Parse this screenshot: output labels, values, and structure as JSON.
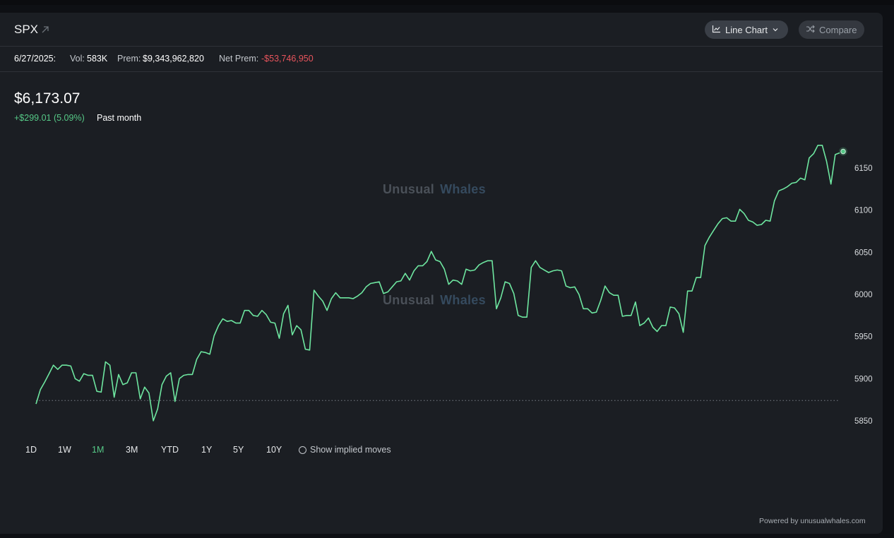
{
  "header": {
    "ticker": "SPX",
    "chart_type_label": "Line Chart",
    "compare_label": "Compare"
  },
  "stats": {
    "date": "6/27/2025:",
    "vol_label": "Vol:",
    "vol_value": "583K",
    "prem_label": "Prem:",
    "prem_value": "$9,343,962,820",
    "net_prem_label": "Net Prem:",
    "net_prem_value": "-$53,746,950"
  },
  "price": {
    "current": "$6,173.07",
    "change": "+$299.01 (5.09%)",
    "period": "Past month"
  },
  "watermark": {
    "word1": "Unusual",
    "word2": "Whales"
  },
  "ranges": [
    "1D",
    "1W",
    "1M",
    "3M",
    "YTD",
    "1Y",
    "5Y",
    "10Y"
  ],
  "active_range": "1M",
  "implied_moves_label": "Show implied moves",
  "footer": "Powered by unusualwhales.com",
  "colors": {
    "line": "#6ee6a0",
    "accent": "#56c987",
    "negative": "#e8545c",
    "background": "#1b1e23"
  },
  "icons": {
    "ticker": "arrow-up-right-icon",
    "chart_type": "line-chart-icon",
    "dropdown": "chevron-down-icon",
    "compare": "shuffle-icon"
  },
  "chart_data": {
    "type": "line",
    "title": "",
    "xlabel": "",
    "ylabel": "",
    "ylim": [
      5835,
      6180
    ],
    "yticks": [
      5850,
      5900,
      5950,
      6000,
      6050,
      6100,
      6150
    ],
    "y_axis_position": "right",
    "grid": false,
    "baseline": 5874.06,
    "series": [
      {
        "values": [
          5870,
          5887,
          5896,
          5906,
          5916,
          5911,
          5916,
          5916,
          5915,
          5900,
          5897,
          5906,
          5904,
          5904,
          5885,
          5884,
          5920,
          5916,
          5878,
          5905,
          5893,
          5895,
          5907,
          5907,
          5876,
          5890,
          5883,
          5850,
          5864,
          5893,
          5903,
          5907,
          5873,
          5900,
          5904,
          5905,
          5905,
          5923,
          5932,
          5931,
          5929,
          5951,
          5963,
          5971,
          5968,
          5969,
          5966,
          5966,
          5981,
          5981,
          5975,
          5974,
          5981,
          5976,
          5967,
          5966,
          5948,
          5977,
          5987,
          5952,
          5963,
          5958,
          5935,
          5934,
          6005,
          5998,
          5992,
          5981,
          5995,
          6002,
          5996,
          5996,
          5996,
          5995,
          5998,
          6002,
          6009,
          6013,
          6014,
          6015,
          6001,
          6003,
          6009,
          6015,
          6016,
          6025,
          6017,
          6028,
          6034,
          6034,
          6039,
          6051,
          6041,
          6039,
          6030,
          6012,
          6017,
          6016,
          6012,
          6030,
          6028,
          6029,
          6035,
          6038,
          6040,
          6040,
          5983,
          5996,
          6015,
          6013,
          6001,
          5975,
          5973,
          5973,
          6032,
          6040,
          6032,
          6029,
          6026,
          6028,
          6029,
          6028,
          6010,
          6008,
          6009,
          6000,
          5983,
          5983,
          5978,
          5979,
          5993,
          6010,
          6002,
          5999,
          5999,
          5974,
          5975,
          5975,
          5991,
          5963,
          5966,
          5972,
          5961,
          5956,
          5963,
          5963,
          5985,
          5984,
          5977,
          5955,
          6004,
          6004,
          6020,
          6020,
          6058,
          6068,
          6076,
          6084,
          6090,
          6091,
          6087,
          6087,
          6101,
          6096,
          6088,
          6086,
          6082,
          6083,
          6088,
          6087,
          6111,
          6123,
          6125,
          6128,
          6132,
          6133,
          6138,
          6136,
          6162,
          6167,
          6177,
          6177,
          6158,
          6131,
          6166,
          6168
        ]
      }
    ]
  }
}
